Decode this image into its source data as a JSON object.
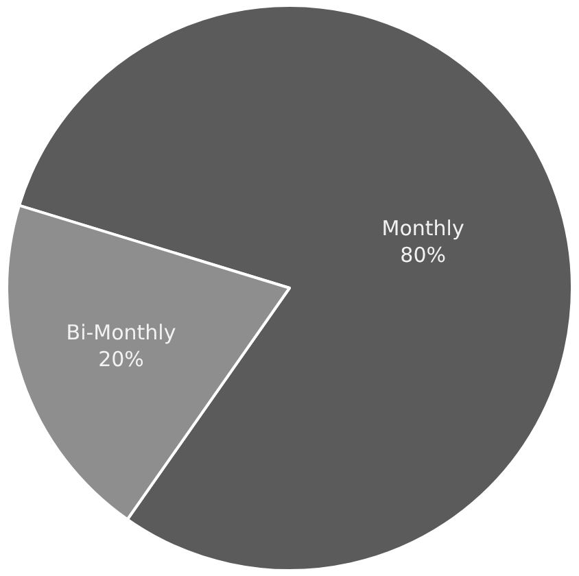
{
  "chart_data": {
    "type": "pie",
    "categories": [
      "Monthly",
      "Bi-Monthly"
    ],
    "values": [
      80,
      20
    ],
    "value_labels": [
      "80%",
      "20%"
    ],
    "colors": [
      "#5b5b5b",
      "#8e8e8e"
    ],
    "legend": false
  }
}
